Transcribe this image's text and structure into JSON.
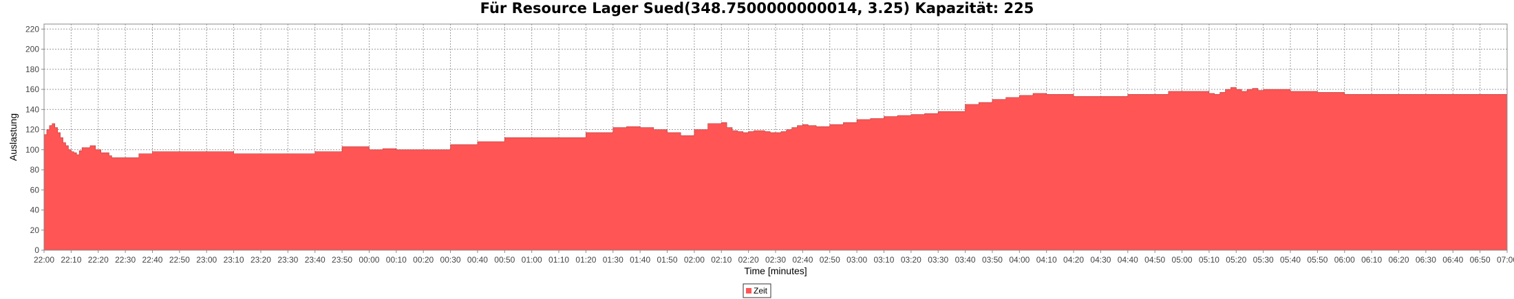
{
  "chart_data": {
    "type": "area",
    "title": "Für Resource Lager Sued(348.7500000000014, 3.25) Kapazität: 225",
    "xlabel": "Time [minutes]",
    "ylabel": "Auslastung",
    "ylim": [
      0,
      225
    ],
    "yticks": [
      0,
      20,
      40,
      60,
      80,
      100,
      120,
      140,
      160,
      180,
      200,
      220
    ],
    "xticks": [
      "22:00",
      "22:10",
      "22:20",
      "22:30",
      "22:40",
      "22:50",
      "23:00",
      "23:10",
      "23:20",
      "23:30",
      "23:40",
      "23:50",
      "00:00",
      "00:10",
      "00:20",
      "00:30",
      "00:40",
      "00:50",
      "01:00",
      "01:10",
      "01:20",
      "01:30",
      "01:40",
      "01:50",
      "02:00",
      "02:10",
      "02:20",
      "02:30",
      "02:40",
      "02:50",
      "03:00",
      "03:10",
      "03:20",
      "03:30",
      "03:40",
      "03:50",
      "04:00",
      "04:10",
      "04:20",
      "04:30",
      "04:40",
      "04:50",
      "05:00",
      "05:10",
      "05:20",
      "05:30",
      "05:40",
      "05:50",
      "06:00",
      "06:10",
      "06:20",
      "06:30",
      "06:40",
      "06:50",
      "07:00"
    ],
    "grid": true,
    "legend_position": "bottom-center",
    "series": [
      {
        "name": "Zeit",
        "color": "#ff5555",
        "step": true,
        "x": [
          0,
          1,
          2,
          3,
          4,
          5,
          6,
          7,
          8,
          9,
          10,
          11,
          12,
          13,
          14,
          15,
          16,
          17,
          19,
          21,
          24,
          25,
          26,
          27,
          28,
          29,
          30,
          35,
          40,
          42,
          44,
          45,
          50,
          60,
          70,
          80,
          90,
          95,
          100,
          110,
          120,
          125,
          130,
          150,
          160,
          170,
          200,
          210,
          215,
          220,
          225,
          230,
          235,
          240,
          245,
          250,
          252,
          254,
          256,
          258,
          260,
          262,
          264,
          266,
          268,
          270,
          272,
          274,
          276,
          278,
          280,
          282,
          285,
          290,
          295,
          300,
          305,
          310,
          315,
          320,
          325,
          330,
          340,
          345,
          350,
          355,
          360,
          365,
          370,
          380,
          390,
          400,
          415,
          420,
          430,
          432,
          434,
          436,
          438,
          440,
          442,
          444,
          446,
          448,
          450,
          455,
          460,
          470,
          475,
          480,
          500,
          520,
          530,
          535,
          540
        ],
        "y": [
          115,
          120,
          124,
          126,
          122,
          117,
          112,
          107,
          104,
          100,
          98,
          97,
          95,
          99,
          102,
          102,
          102,
          104,
          100,
          97,
          94,
          92,
          92,
          92,
          92,
          92,
          92,
          96,
          98,
          98,
          98,
          98,
          98,
          98,
          96,
          96,
          96,
          96,
          98,
          103,
          100,
          101,
          100,
          105,
          108,
          112,
          117,
          122,
          123,
          122,
          120,
          117,
          114,
          120,
          126,
          127,
          122,
          119,
          118,
          117,
          118,
          119,
          119,
          118,
          117,
          117,
          118,
          120,
          122,
          124,
          125,
          124,
          123,
          125,
          127,
          130,
          131,
          133,
          134,
          135,
          136,
          138,
          145,
          147,
          150,
          152,
          154,
          156,
          155,
          153,
          153,
          155,
          158,
          158,
          156,
          155,
          157,
          160,
          162,
          160,
          158,
          160,
          161,
          159,
          160,
          160,
          158,
          157,
          157,
          155,
          155,
          155,
          155,
          155,
          155
        ]
      }
    ]
  }
}
